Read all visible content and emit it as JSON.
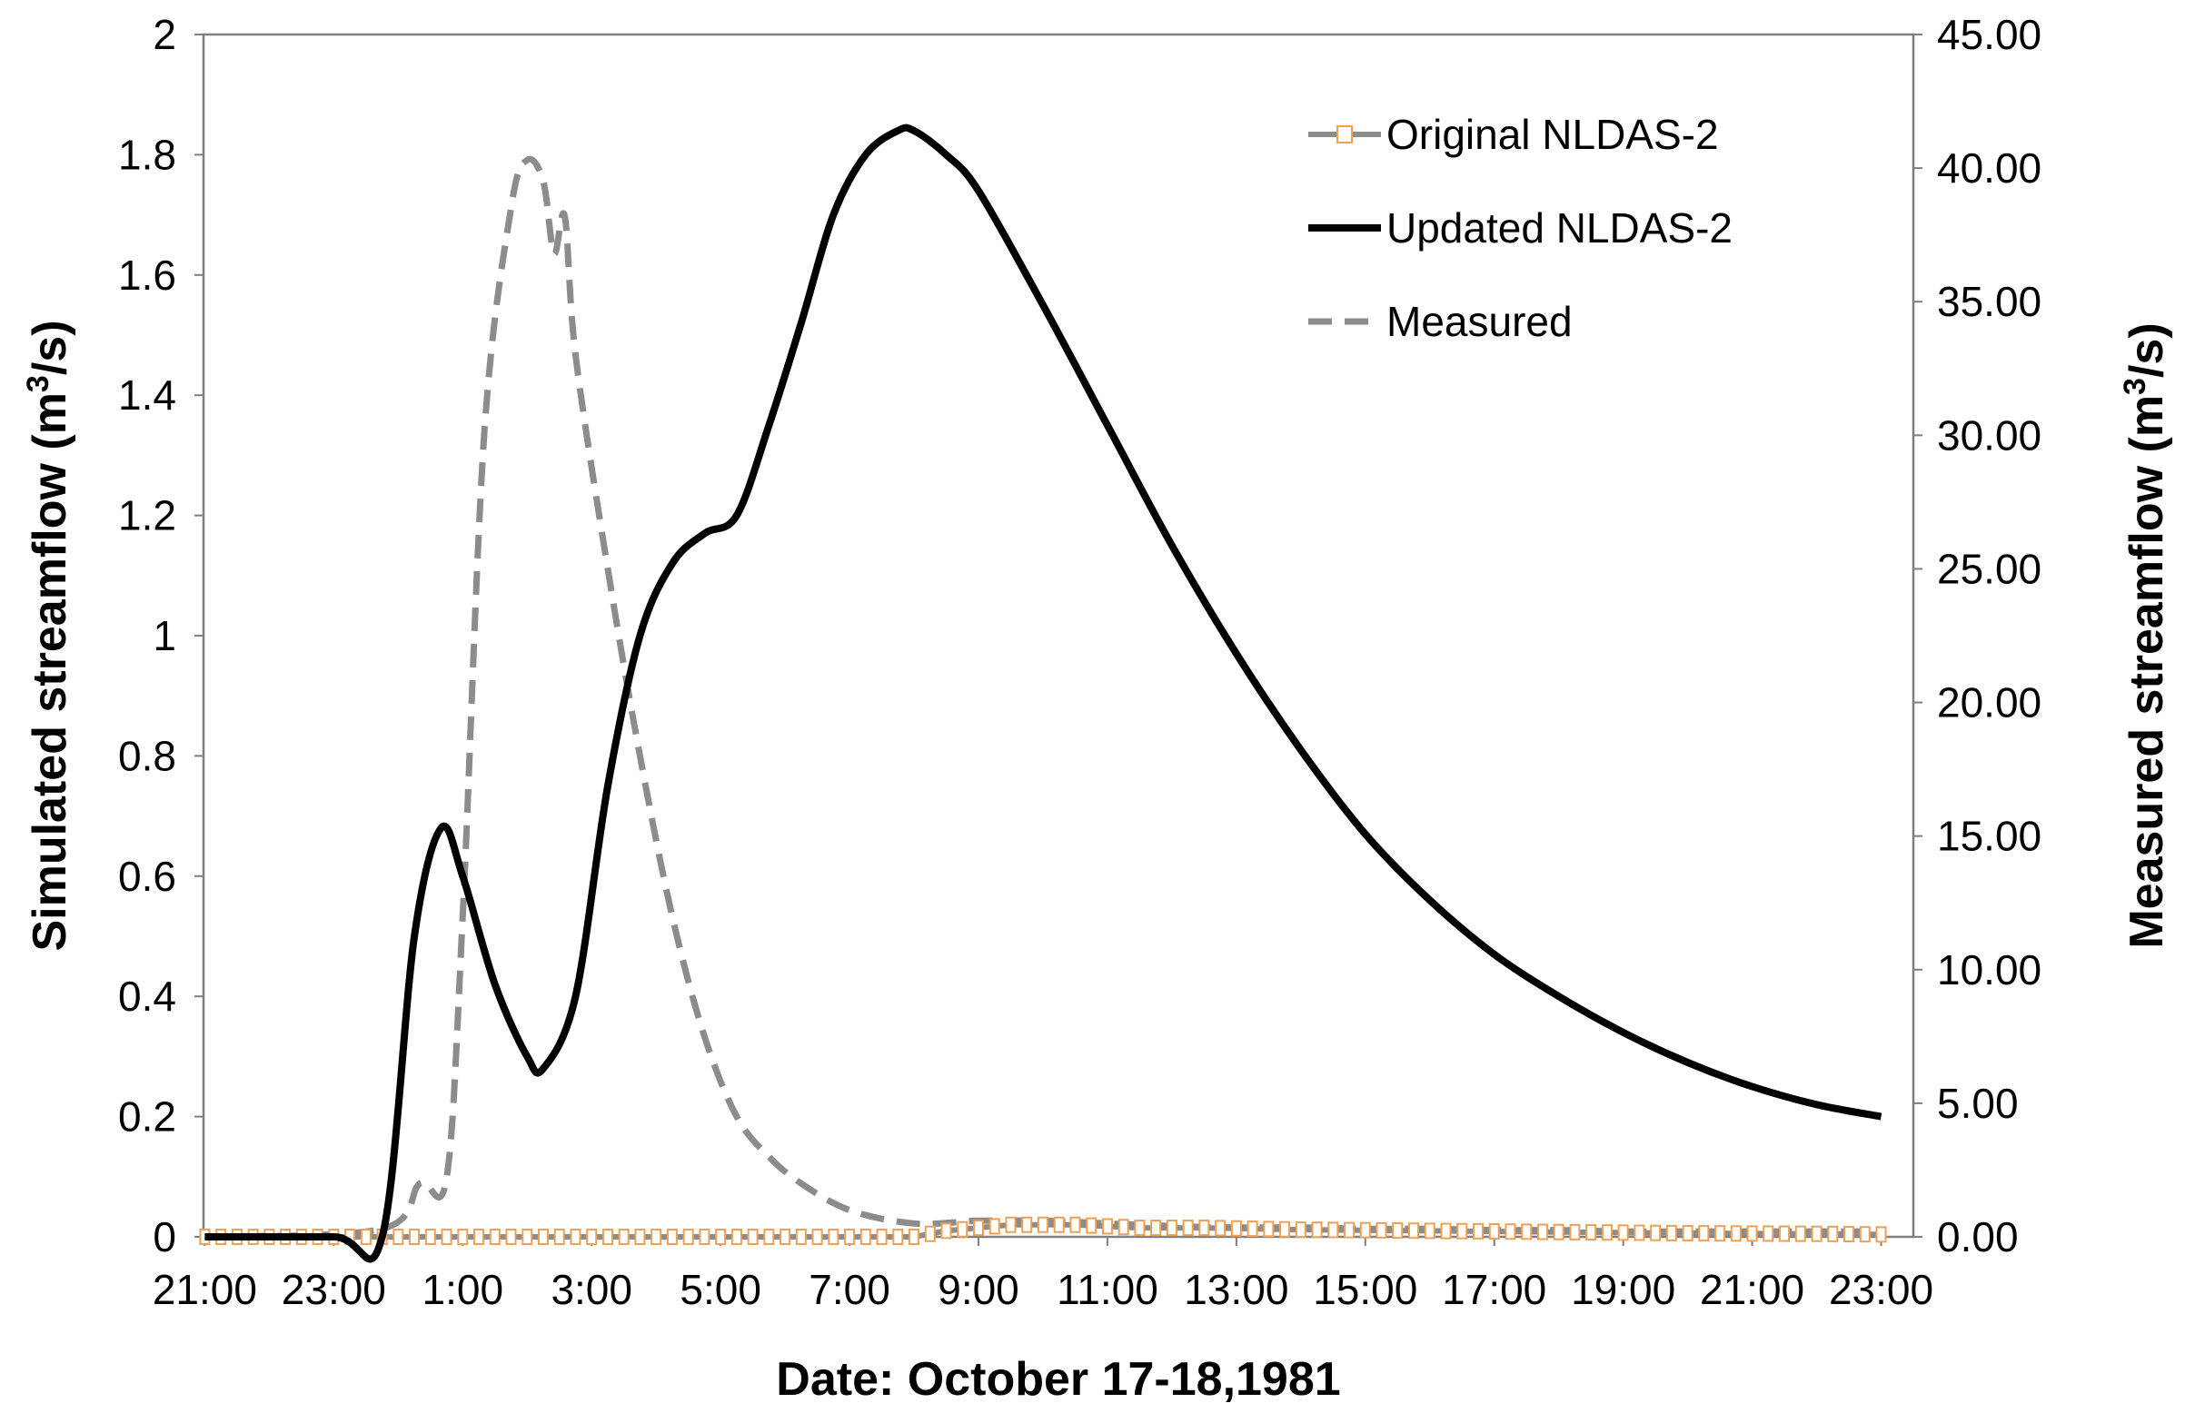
{
  "chart_data": {
    "type": "line",
    "title": "",
    "xlabel": "Date: October 17-18,1981",
    "ylabel_left": "Simulated streamflow (m³/s)",
    "ylabel_right": "Measured streamflow (m³/s)",
    "x_start": "21:00",
    "x_end": "23:00",
    "x_ticks": [
      "21:00",
      "23:00",
      "1:00",
      "3:00",
      "5:00",
      "7:00",
      "9:00",
      "11:00",
      "13:00",
      "15:00",
      "17:00",
      "19:00",
      "21:00",
      "23:00"
    ],
    "y_left_ticks": [
      "0",
      "0.2",
      "0.4",
      "0.6",
      "0.8",
      "1",
      "1.2",
      "1.4",
      "1.6",
      "1.8",
      "2"
    ],
    "y_right_ticks": [
      "0.00",
      "5.00",
      "10.00",
      "15.00",
      "20.00",
      "25.00",
      "30.00",
      "35.00",
      "40.00",
      "45.00"
    ],
    "ylim_left": [
      0,
      2
    ],
    "ylim_right": [
      0,
      45
    ],
    "grid": false,
    "legend_position": "top-right",
    "series": [
      {
        "name": "Original NLDAS-2",
        "axis": "left",
        "style": "solid-gray-square-markers",
        "color": "#8c8c8c",
        "marker_color": "#f0a050",
        "marker_every_hours": 0.25,
        "x": [
          "21:00",
          "8:00",
          "8:30",
          "9:30",
          "10:30",
          "11:30",
          "12:30",
          "14:00",
          "16:00",
          "18:00",
          "20:00",
          "22:00",
          "23:00"
        ],
        "values": [
          0,
          0,
          0.01,
          0.02,
          0.02,
          0.015,
          0.015,
          0.012,
          0.01,
          0.008,
          0.006,
          0.005,
          0.004
        ]
      },
      {
        "name": "Updated NLDAS-2",
        "axis": "left",
        "style": "solid",
        "color": "#000000",
        "x": [
          "21:00",
          "23:00",
          "23:45",
          "0:15",
          "0:40",
          "1:00",
          "1:30",
          "2:00",
          "2:15",
          "2:45",
          "3:15",
          "3:45",
          "4:15",
          "4:45",
          "5:15",
          "5:45",
          "6:15",
          "6:45",
          "7:15",
          "7:45",
          "8:00",
          "8:30",
          "9:00",
          "10:00",
          "11:00",
          "12:00",
          "13:00",
          "14:00",
          "15:00",
          "16:00",
          "17:00",
          "18:00",
          "19:00",
          "20:00",
          "21:00",
          "22:00",
          "23:00"
        ],
        "values": [
          0.0,
          0.0,
          0.0,
          0.5,
          0.68,
          0.6,
          0.42,
          0.3,
          0.28,
          0.4,
          0.75,
          1.0,
          1.12,
          1.17,
          1.2,
          1.35,
          1.52,
          1.7,
          1.8,
          1.84,
          1.84,
          1.8,
          1.74,
          1.55,
          1.35,
          1.15,
          0.97,
          0.81,
          0.67,
          0.56,
          0.47,
          0.4,
          0.34,
          0.29,
          0.25,
          0.22,
          0.2
        ]
      },
      {
        "name": "Measured",
        "axis": "right",
        "style": "dashed",
        "color": "#8c8c8c",
        "x": [
          "21:00",
          "23:45",
          "0:20",
          "0:45",
          "1:00",
          "1:20",
          "1:45",
          "2:00",
          "2:15",
          "2:25",
          "2:35",
          "2:45",
          "3:15",
          "3:45",
          "4:15",
          "4:45",
          "5:15",
          "5:45",
          "6:15",
          "7:00",
          "8:00",
          "9:00",
          "10:00",
          "11:00",
          "12:00",
          "13:00",
          "14:00",
          "15:00",
          "16:00",
          "17:00",
          "18:00",
          "19:00",
          "20:00",
          "21:00",
          "22:00",
          "23:00"
        ],
        "values": [
          0.0,
          0.3,
          2.0,
          2.2,
          12,
          30,
          38.5,
          40.3,
          39.5,
          36.8,
          38.2,
          33,
          25,
          18,
          12,
          7.5,
          4.5,
          3.0,
          2.0,
          1.0,
          0.5,
          0.6,
          0.6,
          0.5,
          0.4,
          0.35,
          0.35,
          0.3,
          0.3,
          0.25,
          0.25,
          0.2,
          0.2,
          0.2,
          0.2,
          0.2
        ]
      }
    ]
  }
}
